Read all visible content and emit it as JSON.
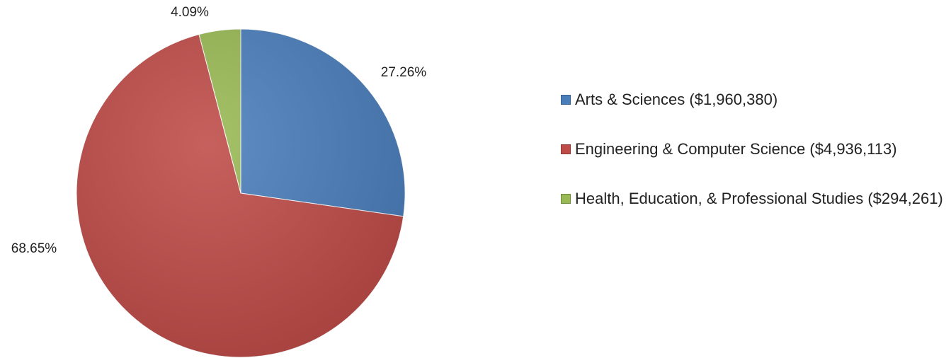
{
  "chart_data": {
    "type": "pie",
    "categories": [
      "Arts & Sciences ($1,960,380)",
      "Engineering & Computer Science ($4,936,113)",
      "Health, Education, & Professional Studies ($294,261)"
    ],
    "values": [
      27.26,
      68.65,
      4.09
    ],
    "value_labels": [
      "27.26%",
      "68.65%",
      "4.09%"
    ],
    "colors": [
      "#4a7ebb",
      "#be4b48",
      "#98b954"
    ],
    "legend": "right"
  }
}
